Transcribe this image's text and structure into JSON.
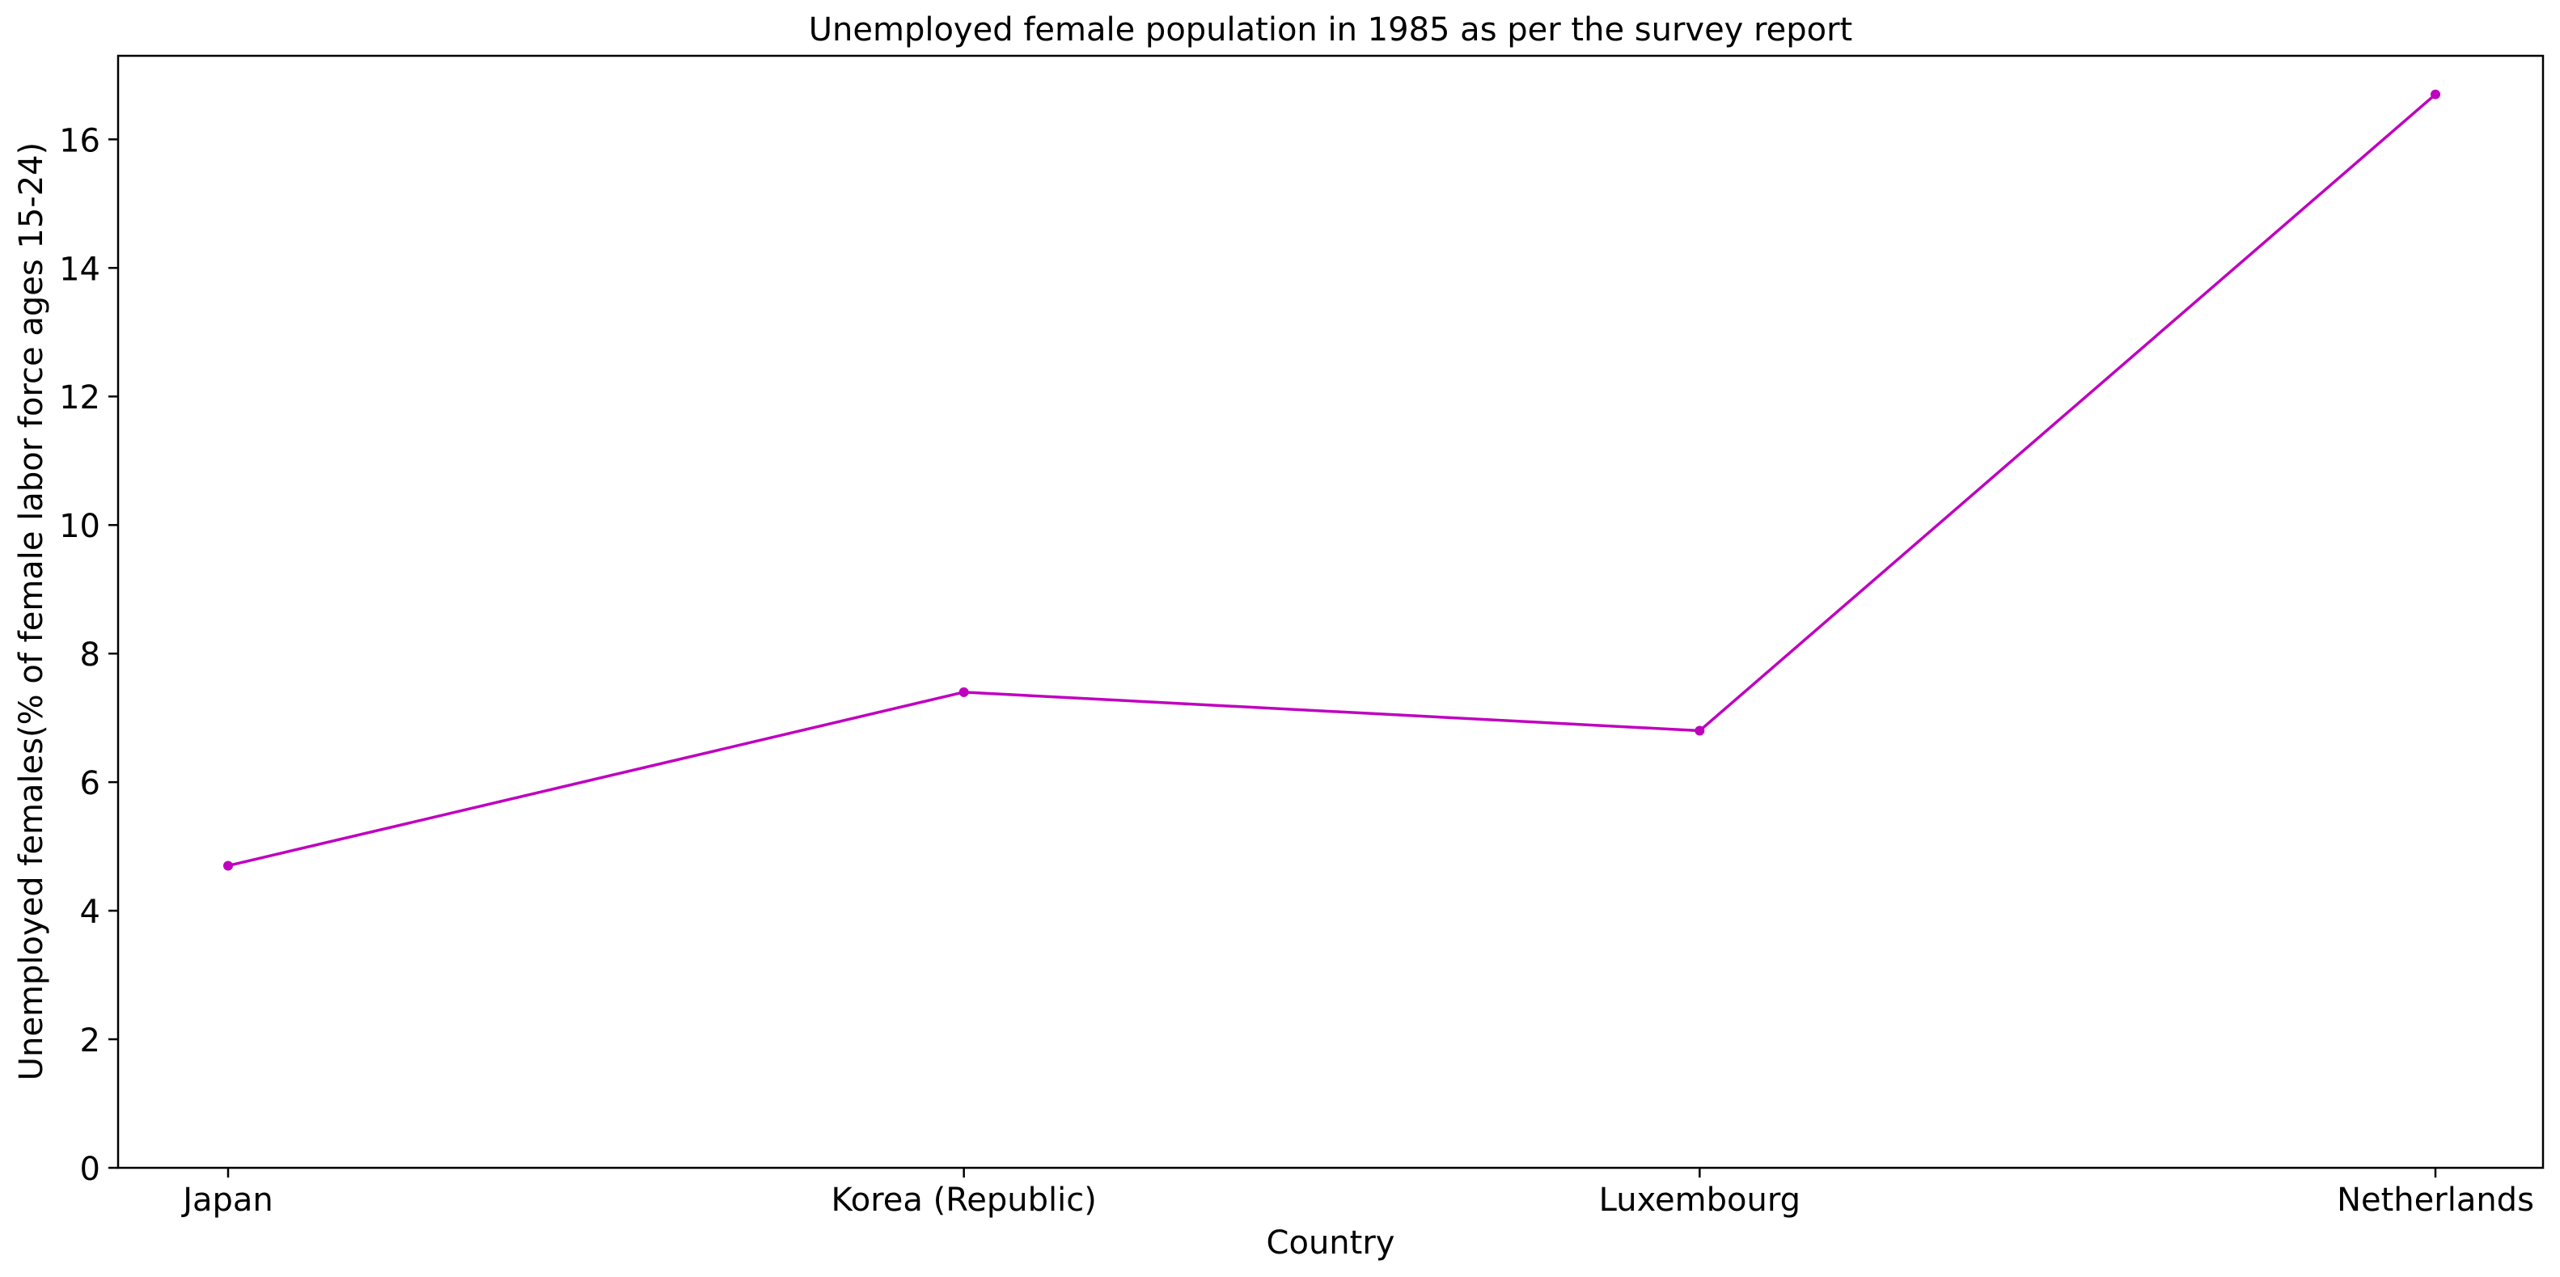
{
  "chart_data": {
    "type": "line",
    "title": "Unemployed female population in 1985 as per the survey report",
    "xlabel": "Country",
    "ylabel": "Unemployed females(% of female labor force ages 15-24)",
    "categories": [
      "Japan",
      "Korea (Republic)",
      "Luxembourg",
      "Netherlands"
    ],
    "series": [
      {
        "values": [
          4.7,
          7.4,
          6.8,
          16.7
        ],
        "color": "#bf00bf",
        "marker": "circle"
      }
    ],
    "ylim": [
      0,
      17.3
    ],
    "yticks": [
      0,
      2,
      4,
      6,
      8,
      10,
      12,
      14,
      16
    ],
    "grid": false,
    "legend": "none"
  }
}
